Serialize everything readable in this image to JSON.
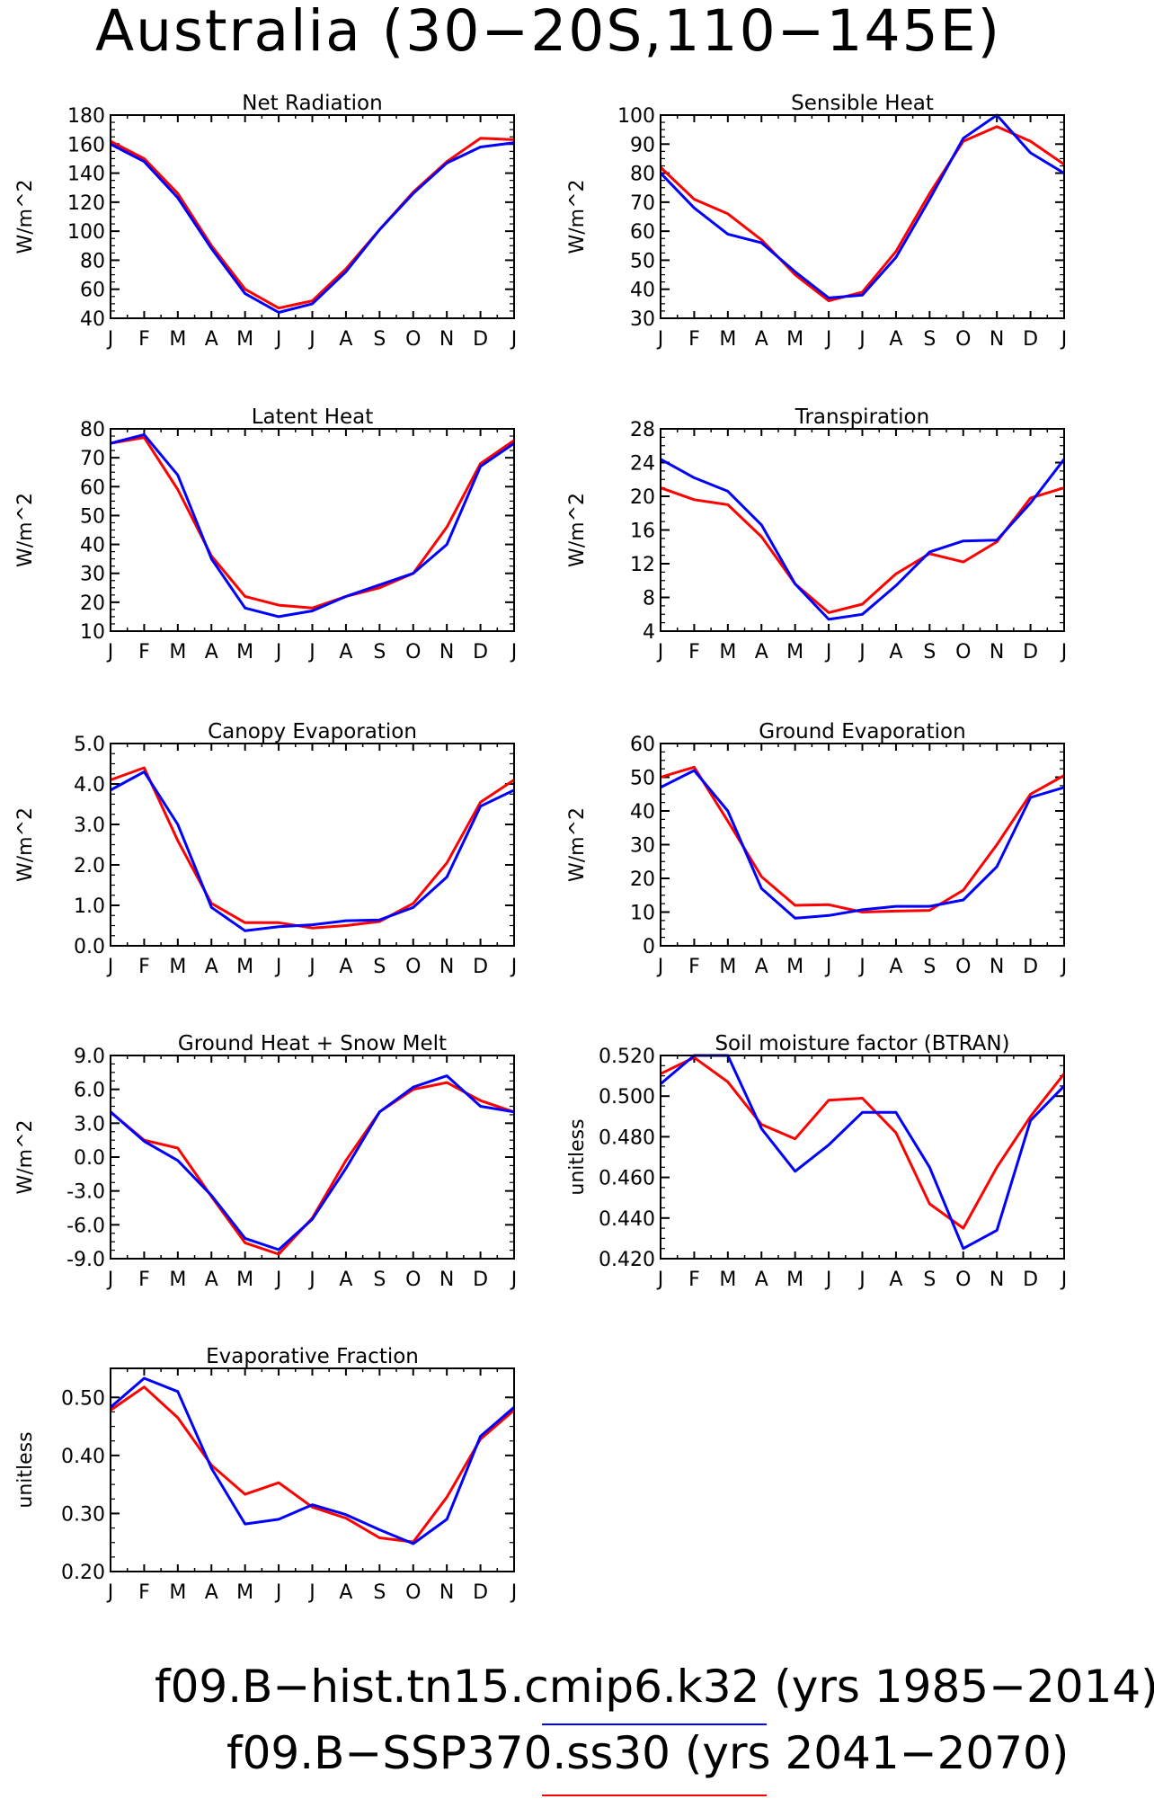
{
  "title": "Australia (30−20S,110−145E)",
  "months": [
    "J",
    "F",
    "M",
    "A",
    "M",
    "J",
    "J",
    "A",
    "S",
    "O",
    "N",
    "D",
    "J"
  ],
  "legend": [
    {
      "label": "f09.B−hist.tn15.cmip6.k32 (yrs 1985−2014)",
      "color": "#0000ff"
    },
    {
      "label": "f09.B−SSP370.ss30 (yrs 2041−2070)",
      "color": "#ff0000"
    }
  ],
  "chart_data": [
    {
      "type": "line",
      "title": "Net Radiation",
      "ylabel": "W/m^2",
      "ylim": [
        40,
        180
      ],
      "yticks": [
        "40",
        "60",
        "80",
        "100",
        "120",
        "140",
        "160",
        "180"
      ],
      "categories": [
        "J",
        "F",
        "M",
        "A",
        "M",
        "J",
        "J",
        "A",
        "S",
        "O",
        "N",
        "D",
        "J"
      ],
      "series": [
        {
          "color": "#ff0000",
          "values": [
            162,
            150,
            126,
            90,
            60,
            47,
            52,
            74,
            101,
            127,
            148,
            164,
            163
          ]
        },
        {
          "color": "#0000ff",
          "values": [
            160,
            148,
            123,
            88,
            57,
            44,
            50,
            72,
            101,
            126,
            147,
            158,
            161
          ]
        }
      ]
    },
    {
      "type": "line",
      "title": "Sensible Heat",
      "ylabel": "W/m^2",
      "ylim": [
        30,
        100
      ],
      "yticks": [
        "30",
        "40",
        "50",
        "60",
        "70",
        "80",
        "90",
        "100"
      ],
      "categories": [
        "J",
        "F",
        "M",
        "A",
        "M",
        "J",
        "J",
        "A",
        "S",
        "O",
        "N",
        "D",
        "J"
      ],
      "series": [
        {
          "color": "#ff0000",
          "values": [
            82,
            71,
            66,
            57,
            45,
            36,
            39,
            53,
            73,
            91,
            96,
            91,
            83
          ]
        },
        {
          "color": "#0000ff",
          "values": [
            80,
            68,
            59,
            56,
            46,
            37,
            38,
            51,
            71,
            92,
            100,
            87,
            80
          ]
        }
      ]
    },
    {
      "type": "line",
      "title": "Latent Heat",
      "ylabel": "W/m^2",
      "ylim": [
        10,
        80
      ],
      "yticks": [
        "10",
        "20",
        "30",
        "40",
        "50",
        "60",
        "70",
        "80"
      ],
      "categories": [
        "J",
        "F",
        "M",
        "A",
        "M",
        "J",
        "J",
        "A",
        "S",
        "O",
        "N",
        "D",
        "J"
      ],
      "series": [
        {
          "color": "#ff0000",
          "values": [
            75,
            77,
            59,
            36,
            22,
            19,
            18,
            22,
            25,
            30,
            46,
            68,
            76
          ]
        },
        {
          "color": "#0000ff",
          "values": [
            75,
            78,
            64,
            35,
            18,
            15,
            17,
            22,
            26,
            30,
            40,
            67,
            75
          ]
        }
      ]
    },
    {
      "type": "line",
      "title": "Transpiration",
      "ylabel": "W/m^2",
      "ylim": [
        4,
        28
      ],
      "yticks": [
        "4",
        "8",
        "12",
        "16",
        "20",
        "24",
        "28"
      ],
      "categories": [
        "J",
        "F",
        "M",
        "A",
        "M",
        "J",
        "J",
        "A",
        "S",
        "O",
        "N",
        "D",
        "J"
      ],
      "series": [
        {
          "color": "#ff0000",
          "values": [
            21,
            19.6,
            19,
            15.2,
            9.6,
            6.2,
            7.2,
            10.8,
            13.2,
            12.2,
            14.6,
            19.8,
            21
          ]
        },
        {
          "color": "#0000ff",
          "values": [
            24.4,
            22.2,
            20.6,
            16.6,
            9.6,
            5.4,
            6.0,
            9.4,
            13.4,
            14.7,
            14.8,
            19.2,
            24.4
          ]
        }
      ]
    },
    {
      "type": "line",
      "title": "Canopy Evaporation",
      "ylabel": "W/m^2",
      "ylim": [
        0,
        5
      ],
      "yticks": [
        "0.0",
        "1.0",
        "2.0",
        "3.0",
        "4.0",
        "5.0"
      ],
      "categories": [
        "J",
        "F",
        "M",
        "A",
        "M",
        "J",
        "J",
        "A",
        "S",
        "O",
        "N",
        "D",
        "J"
      ],
      "series": [
        {
          "color": "#ff0000",
          "values": [
            4.1,
            4.4,
            2.6,
            1.05,
            0.57,
            0.57,
            0.44,
            0.5,
            0.6,
            1.05,
            2.05,
            3.55,
            4.1
          ]
        },
        {
          "color": "#0000ff",
          "values": [
            3.85,
            4.3,
            3.0,
            0.95,
            0.37,
            0.47,
            0.52,
            0.62,
            0.64,
            0.95,
            1.7,
            3.45,
            3.85
          ]
        }
      ]
    },
    {
      "type": "line",
      "title": "Ground Evaporation",
      "ylabel": "W/m^2",
      "ylim": [
        0,
        60
      ],
      "yticks": [
        "0",
        "10",
        "20",
        "30",
        "40",
        "50",
        "60"
      ],
      "categories": [
        "J",
        "F",
        "M",
        "A",
        "M",
        "J",
        "J",
        "A",
        "S",
        "O",
        "N",
        "D",
        "J"
      ],
      "series": [
        {
          "color": "#ff0000",
          "values": [
            50,
            53,
            37,
            20.5,
            12,
            12.2,
            10,
            10.3,
            10.5,
            16.5,
            30,
            45,
            50.5
          ]
        },
        {
          "color": "#0000ff",
          "values": [
            47,
            52,
            40,
            17,
            8.2,
            9,
            10.7,
            11.7,
            11.7,
            13.6,
            23.5,
            44,
            47
          ]
        }
      ]
    },
    {
      "type": "line",
      "title": "Ground Heat + Snow Melt",
      "ylabel": "W/m^2",
      "ylim": [
        -9,
        9
      ],
      "yticks": [
        "-9.0",
        "-6.0",
        "-3.0",
        "0.0",
        "3.0",
        "6.0",
        "9.0"
      ],
      "categories": [
        "J",
        "F",
        "M",
        "A",
        "M",
        "J",
        "J",
        "A",
        "S",
        "O",
        "N",
        "D",
        "J"
      ],
      "series": [
        {
          "color": "#ff0000",
          "values": [
            4.0,
            1.5,
            0.8,
            -3.5,
            -7.6,
            -8.6,
            -5.4,
            -0.3,
            4.0,
            6.0,
            6.6,
            5.0,
            4.0
          ]
        },
        {
          "color": "#0000ff",
          "values": [
            4.0,
            1.4,
            -0.3,
            -3.4,
            -7.2,
            -8.2,
            -5.5,
            -1.0,
            4.0,
            6.2,
            7.2,
            4.5,
            4.0
          ]
        }
      ]
    },
    {
      "type": "line",
      "title": "Soil moisture factor (BTRAN)",
      "ylabel": "unitless",
      "ylim": [
        0.42,
        0.52
      ],
      "yticks": [
        "0.420",
        "0.440",
        "0.460",
        "0.480",
        "0.500",
        "0.520"
      ],
      "categories": [
        "J",
        "F",
        "M",
        "A",
        "M",
        "J",
        "J",
        "A",
        "S",
        "O",
        "N",
        "D",
        "J"
      ],
      "series": [
        {
          "color": "#ff0000",
          "values": [
            0.511,
            0.519,
            0.507,
            0.486,
            0.479,
            0.498,
            0.499,
            0.482,
            0.447,
            0.435,
            0.465,
            0.49,
            0.511
          ]
        },
        {
          "color": "#0000ff",
          "values": [
            0.506,
            0.52,
            0.52,
            0.484,
            0.463,
            0.476,
            0.492,
            0.492,
            0.465,
            0.425,
            0.434,
            0.488,
            0.505
          ]
        }
      ]
    },
    {
      "type": "line",
      "title": "Evaporative Fraction",
      "ylabel": "unitless",
      "ylim": [
        0.2,
        0.55
      ],
      "yticks": [
        "0.20",
        "0.30",
        "0.40",
        "0.50"
      ],
      "categories": [
        "J",
        "F",
        "M",
        "A",
        "M",
        "J",
        "J",
        "A",
        "S",
        "O",
        "N",
        "D",
        "J"
      ],
      "series": [
        {
          "color": "#ff0000",
          "values": [
            0.478,
            0.518,
            0.465,
            0.383,
            0.333,
            0.353,
            0.311,
            0.292,
            0.258,
            0.251,
            0.328,
            0.428,
            0.478
          ]
        },
        {
          "color": "#0000ff",
          "values": [
            0.483,
            0.533,
            0.51,
            0.378,
            0.282,
            0.29,
            0.315,
            0.298,
            0.272,
            0.248,
            0.29,
            0.433,
            0.483
          ]
        }
      ]
    }
  ]
}
